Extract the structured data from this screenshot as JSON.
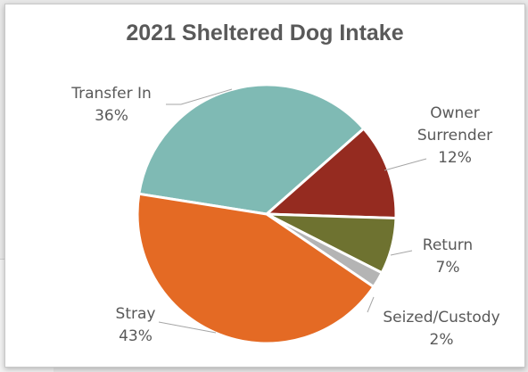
{
  "chart_data": {
    "type": "pie",
    "title": "2021 Sheltered Dog Intake",
    "slices": [
      {
        "label": "Transfer In",
        "value": 36,
        "value_label": "36%",
        "color": "#7fbab4"
      },
      {
        "label": "Owner Surrender",
        "label_lines": [
          "Owner",
          "Surrender"
        ],
        "value": 12,
        "value_label": "12%",
        "color": "#952b20"
      },
      {
        "label": "Return",
        "value": 7,
        "value_label": "7%",
        "color": "#6e7230"
      },
      {
        "label": "Seized/Custody",
        "value": 2,
        "value_label": "2%",
        "color": "#b4b4b4"
      },
      {
        "label": "Stray",
        "value": 43,
        "value_label": "43%",
        "color": "#e46a24"
      }
    ],
    "legend": "none"
  }
}
